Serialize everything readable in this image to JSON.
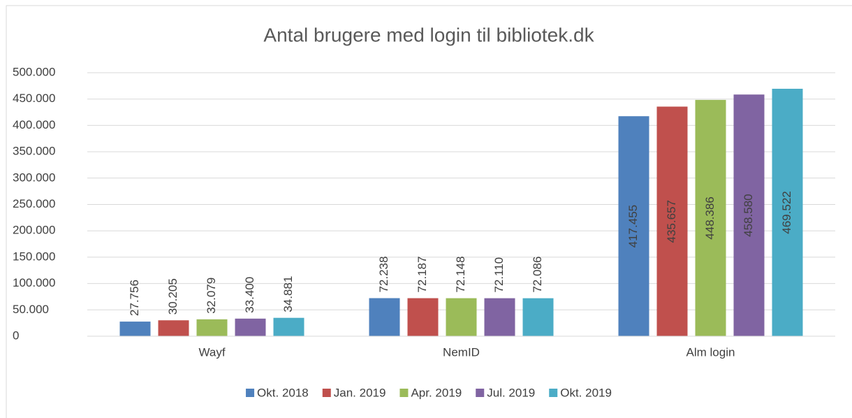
{
  "chart_data": {
    "type": "bar",
    "title": "Antal brugere med login til bibliotek.dk",
    "categories": [
      "Wayf",
      "NemID",
      "Alm login"
    ],
    "series": [
      {
        "name": "Okt. 2018",
        "color": "#4f81bd",
        "values": [
          27756,
          72238,
          417455
        ],
        "value_labels": [
          "27.756",
          "72.238",
          "417.455"
        ]
      },
      {
        "name": "Jan. 2019",
        "color": "#c0504d",
        "values": [
          30205,
          72187,
          435657
        ],
        "value_labels": [
          "30.205",
          "72.187",
          "435.657"
        ]
      },
      {
        "name": "Apr. 2019",
        "color": "#9bbb59",
        "values": [
          32079,
          72148,
          448386
        ],
        "value_labels": [
          "32.079",
          "72.148",
          "448.386"
        ]
      },
      {
        "name": "Jul. 2019",
        "color": "#8064a2",
        "values": [
          33400,
          72110,
          458580
        ],
        "value_labels": [
          "33.400",
          "72.110",
          "458.580"
        ]
      },
      {
        "name": "Okt. 2019",
        "color": "#4bacc6",
        "values": [
          34881,
          72086,
          469522
        ],
        "value_labels": [
          "34.881",
          "72.086",
          "469.522"
        ]
      }
    ],
    "ylim": [
      0,
      500000
    ],
    "yticks": [
      0,
      {
        "value": 50000,
        "label": "50.000"
      },
      {
        "value": 100000,
        "label": "100.000"
      },
      {
        "value": 150000,
        "label": "150.000"
      },
      {
        "value": 200000,
        "label": "200.000"
      },
      {
        "value": 250000,
        "label": "250.000"
      },
      {
        "value": 300000,
        "label": "300.000"
      },
      {
        "value": 350000,
        "label": "350.000"
      },
      {
        "value": 400000,
        "label": "400.000"
      },
      {
        "value": 450000,
        "label": "450.000"
      },
      {
        "value": 500000,
        "label": "500.000"
      }
    ],
    "grid": true,
    "legend": "bottom"
  }
}
